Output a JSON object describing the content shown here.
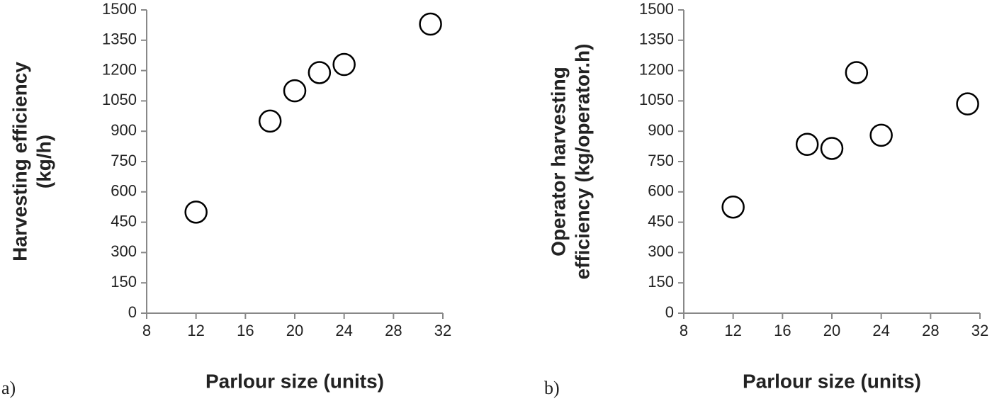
{
  "chart_data": [
    {
      "type": "scatter",
      "panel_label": "a)",
      "x_label": "Parlour size (units)",
      "y_label": [
        "Harvesting efficiency",
        "(kg/h)"
      ],
      "x": [
        12,
        18,
        20,
        22,
        24,
        31
      ],
      "values": [
        500,
        950,
        1100,
        1190,
        1230,
        1430
      ],
      "xlim": [
        8,
        32
      ],
      "xticks": [
        8,
        12,
        16,
        20,
        24,
        28,
        32
      ],
      "ylim": [
        0,
        1500
      ],
      "yticks": [
        0,
        150,
        300,
        450,
        600,
        750,
        900,
        1050,
        1200,
        1350,
        1500
      ],
      "color": "#000000"
    },
    {
      "type": "scatter",
      "panel_label": "b)",
      "x_label": "Parlour size (units)",
      "y_label": [
        "Operator harvesting",
        "efficiency (kg/operator.h)"
      ],
      "x": [
        12,
        18,
        20,
        22,
        24,
        31
      ],
      "values": [
        525,
        835,
        815,
        1190,
        880,
        1035
      ],
      "xlim": [
        8,
        32
      ],
      "xticks": [
        8,
        12,
        16,
        20,
        24,
        28,
        32
      ],
      "ylim": [
        0,
        1500
      ],
      "yticks": [
        0,
        150,
        300,
        450,
        600,
        750,
        900,
        1050,
        1200,
        1350,
        1500
      ],
      "color": "#000000"
    }
  ]
}
